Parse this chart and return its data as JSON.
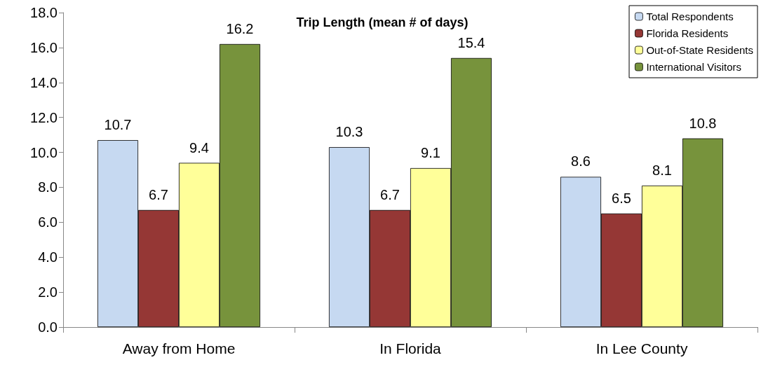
{
  "chart_data": {
    "type": "bar",
    "title": "Trip Length (mean # of days)",
    "categories": [
      "Away from Home",
      "In Florida",
      "In Lee County"
    ],
    "series": [
      {
        "name": "Total Respondents",
        "color": "#c6d9f1",
        "values": [
          10.7,
          10.3,
          8.6
        ]
      },
      {
        "name": "Florida Residents",
        "color": "#953735",
        "values": [
          6.7,
          6.7,
          6.5
        ]
      },
      {
        "name": "Out-of-State Residents",
        "color": "#ffff99",
        "values": [
          9.4,
          9.1,
          8.1
        ]
      },
      {
        "name": "International Visitors",
        "color": "#77933c",
        "values": [
          16.2,
          15.4,
          10.8
        ]
      }
    ],
    "ylim": [
      0,
      18
    ],
    "yticks": [
      {
        "value": 0,
        "label": "0.0"
      },
      {
        "value": 2,
        "label": "2.0"
      },
      {
        "value": 4,
        "label": "4.0"
      },
      {
        "value": 6,
        "label": "6.0"
      },
      {
        "value": 8,
        "label": "8.0"
      },
      {
        "value": 10,
        "label": "10.0"
      },
      {
        "value": 12,
        "label": "12.0"
      },
      {
        "value": 14,
        "label": "14.0"
      },
      {
        "value": 16,
        "label": "16.0"
      },
      {
        "value": 18,
        "label": "18.0"
      }
    ],
    "data_labels": true,
    "grid": false,
    "legend": "top right"
  }
}
